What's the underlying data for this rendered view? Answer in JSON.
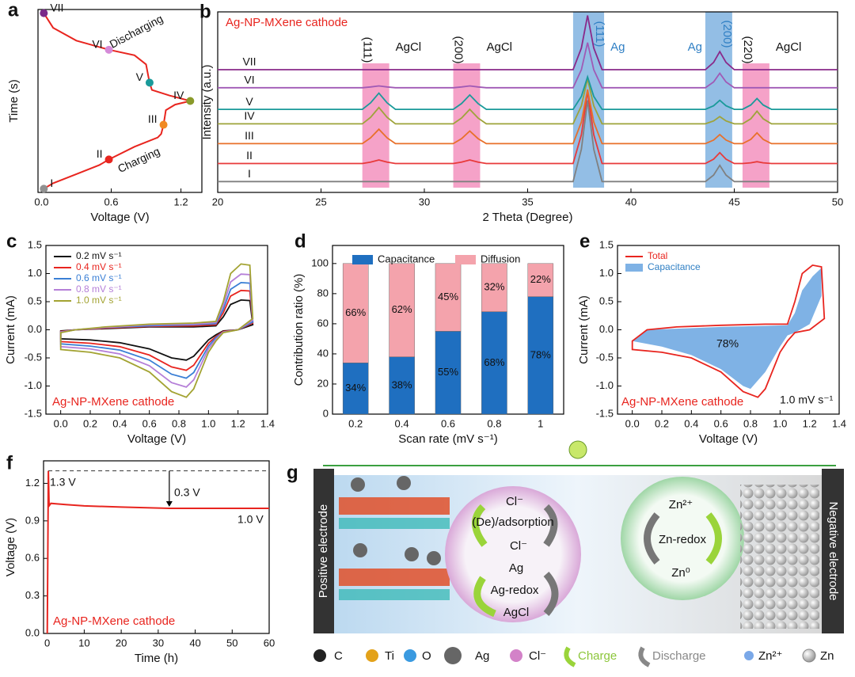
{
  "chart_data": [
    {
      "type": "line",
      "panel": "a",
      "x_label": "Voltage (V)",
      "y_label": "Time (s)",
      "color": "#e8251f",
      "x": [
        0.02,
        0.1,
        0.3,
        0.5,
        0.58,
        0.8,
        1.0,
        1.03,
        1.05,
        1.07,
        1.15,
        1.28,
        1.1,
        0.95,
        0.93,
        0.9,
        0.8,
        0.58,
        0.3,
        0.1,
        0.02
      ],
      "values": [
        0.02,
        0.05,
        0.1,
        0.15,
        0.18,
        0.25,
        0.3,
        0.32,
        0.37,
        0.45,
        0.48,
        0.5,
        0.53,
        0.56,
        0.6,
        0.7,
        0.75,
        0.78,
        0.83,
        0.9,
        0.98
      ],
      "markers": {
        "labels": [
          "I",
          "II",
          "III",
          "IV",
          "V",
          "VI",
          "VII"
        ],
        "x": [
          0.02,
          0.58,
          1.05,
          1.28,
          0.93,
          0.58,
          0.02
        ],
        "y": [
          0.02,
          0.18,
          0.37,
          0.5,
          0.6,
          0.78,
          0.98
        ],
        "colors": [
          "#909090",
          "#e8251f",
          "#f08a24",
          "#8a9a2a",
          "#1a9a9a",
          "#d58ad8",
          "#7a2a8a"
        ]
      },
      "annotations": [
        "Discharging",
        "Charging"
      ],
      "xlim": [
        -0.03,
        1.38
      ],
      "xticks": [
        {
          "value": 0,
          "label": "0.0"
        },
        0.6,
        1.2
      ],
      "ylim": [
        0,
        1
      ]
    },
    {
      "type": "line",
      "panel": "b",
      "title": "Ag-NP-MXene cathode",
      "x_label": "2 Theta (Degree)",
      "y_label": "Intensity (a.u.)",
      "x": [
        20,
        27.0,
        27.4,
        27.8,
        28.2,
        28.6,
        31.4,
        31.8,
        32.2,
        32.6,
        33.0,
        37.2,
        37.6,
        37.9,
        38.2,
        38.6,
        43.6,
        44.0,
        44.3,
        44.6,
        45.0,
        45.4,
        45.8,
        46.1,
        46.4,
        46.8,
        50
      ],
      "series": [
        {
          "name": "I",
          "color": "#808080",
          "values": [
            6,
            6,
            6,
            6,
            6,
            6,
            6,
            6,
            6,
            6,
            6,
            6,
            24,
            51,
            24,
            6,
            6,
            9.6,
            15,
            9.6,
            6,
            6,
            6,
            6,
            6,
            6,
            6
          ]
        },
        {
          "name": "II",
          "color": "#e83a3a",
          "values": [
            16,
            16,
            16.8,
            18,
            16.8,
            16,
            16,
            16.8,
            18,
            16.8,
            16,
            16,
            32,
            56,
            32,
            16,
            16,
            18.4,
            22,
            18.4,
            16,
            16,
            16.4,
            17,
            16.4,
            16,
            16
          ]
        },
        {
          "name": "III",
          "color": "#e8702a",
          "values": [
            27,
            27,
            30.2,
            35,
            30.2,
            27,
            27,
            29.8,
            34,
            29.8,
            27,
            27,
            39,
            57,
            39,
            27,
            27,
            29,
            32,
            29,
            27,
            27,
            29.4,
            33,
            29.4,
            27,
            27
          ]
        },
        {
          "name": "IV",
          "color": "#9ea33a",
          "values": [
            38,
            38,
            41.6,
            47,
            41.6,
            38,
            38,
            41.2,
            46,
            41.2,
            38,
            38,
            48,
            63,
            48,
            38,
            38,
            39.6,
            42,
            39.6,
            38,
            38,
            40.8,
            45,
            40.8,
            38,
            38
          ]
        },
        {
          "name": "V",
          "color": "#1a9a9a",
          "values": [
            46,
            46,
            49.6,
            55,
            49.6,
            46,
            46,
            49.2,
            54,
            49.2,
            46,
            46,
            53.2,
            64,
            53.2,
            46,
            46,
            48,
            51,
            48,
            46,
            46,
            48.4,
            52,
            48.4,
            46,
            46
          ]
        },
        {
          "name": "VI",
          "color": "#a05ab5",
          "values": [
            58,
            58,
            58.4,
            59,
            58.4,
            58,
            58,
            58.4,
            59,
            58.4,
            58,
            58,
            68,
            83,
            68,
            58,
            58,
            61.2,
            66,
            61.2,
            58,
            58,
            58,
            58,
            58,
            58,
            58
          ]
        },
        {
          "name": "VII",
          "color": "#8a2a8a",
          "values": [
            68,
            68,
            68,
            68,
            68,
            68,
            68,
            68,
            68,
            68,
            68,
            68,
            80,
            98,
            80,
            68,
            68,
            72,
            78,
            72,
            68,
            68,
            68,
            68,
            68,
            68,
            68
          ]
        }
      ],
      "bands": [
        {
          "x": [
            27.0,
            28.3
          ],
          "hkl": "(111)",
          "phase": "AgCl",
          "color": "#f283b6",
          "label_color": "#111"
        },
        {
          "x": [
            31.4,
            32.7
          ],
          "hkl": "(200)",
          "phase": "AgCl",
          "color": "#f283b6",
          "label_color": "#111"
        },
        {
          "x": [
            37.2,
            38.7
          ],
          "hkl": "(111)",
          "phase": "Ag",
          "color": "#6fa8dc",
          "label_color": "#2f7fc4"
        },
        {
          "x": [
            43.6,
            44.9
          ],
          "hkl": "(200)",
          "phase": "Ag",
          "color": "#6fa8dc",
          "label_color": "#2f7fc4"
        },
        {
          "x": [
            45.4,
            46.7
          ],
          "hkl": "(220)",
          "phase": "AgCl",
          "color": "#f283b6",
          "label_color": "#111"
        }
      ],
      "xlim": [
        20,
        50
      ],
      "xticks": [
        20,
        25,
        30,
        35,
        40,
        45,
        50
      ],
      "ylim": [
        0,
        100
      ]
    },
    {
      "type": "line",
      "panel": "c",
      "x_label": "Voltage (V)",
      "y_label": "Current (mA)",
      "legend": "upper left",
      "annotations": [
        "Ag-NP-MXene cathode"
      ],
      "series": [
        {
          "name": "0.2 mV s⁻¹",
          "color": "#111111",
          "x": [
            0.0,
            0.1,
            0.3,
            0.6,
            0.9,
            1.05,
            1.1,
            1.15,
            1.22,
            1.28,
            1.3,
            1.2,
            1.1,
            1.05,
            1.0,
            0.9,
            0.85,
            0.75,
            0.6,
            0.4,
            0.2,
            0.0
          ],
          "values": [
            -0.02,
            0,
            0.02,
            0.05,
            0.05,
            0.07,
            0.23,
            0.45,
            0.53,
            0.52,
            0.09,
            0,
            -0.02,
            -0.09,
            -0.18,
            -0.47,
            -0.54,
            -0.5,
            -0.34,
            -0.23,
            -0.18,
            -0.16
          ]
        },
        {
          "name": "0.4 mV s⁻¹",
          "color": "#e8251f",
          "x": [
            0.0,
            0.1,
            0.3,
            0.6,
            0.9,
            1.05,
            1.1,
            1.15,
            1.22,
            1.28,
            1.3,
            1.2,
            1.1,
            1.05,
            1.0,
            0.9,
            0.85,
            0.75,
            0.6,
            0.4,
            0.2,
            0.0
          ],
          "values": [
            -0.03,
            0,
            0.03,
            0.06,
            0.07,
            0.09,
            0.3,
            0.6,
            0.7,
            0.69,
            0.12,
            0,
            -0.03,
            -0.12,
            -0.24,
            -0.63,
            -0.72,
            -0.66,
            -0.45,
            -0.3,
            -0.24,
            -0.21
          ]
        },
        {
          "name": "0.6 mV s⁻¹",
          "color": "#3a7fd5",
          "x": [
            0.0,
            0.1,
            0.3,
            0.6,
            0.9,
            1.05,
            1.1,
            1.15,
            1.22,
            1.28,
            1.3,
            1.2,
            1.1,
            1.05,
            1.0,
            0.9,
            0.85,
            0.75,
            0.6,
            0.4,
            0.2,
            0.0
          ],
          "values": [
            -0.04,
            0,
            0.04,
            0.07,
            0.09,
            0.11,
            0.36,
            0.72,
            0.84,
            0.83,
            0.14,
            0,
            -0.04,
            -0.14,
            -0.29,
            -0.76,
            -0.86,
            -0.79,
            -0.54,
            -0.36,
            -0.29,
            -0.25
          ]
        },
        {
          "name": "0.8 mV s⁻¹",
          "color": "#b57fd8",
          "x": [
            0.0,
            0.1,
            0.3,
            0.6,
            0.9,
            1.05,
            1.1,
            1.15,
            1.22,
            1.28,
            1.3,
            1.2,
            1.1,
            1.05,
            1.0,
            0.9,
            0.85,
            0.75,
            0.6,
            0.4,
            0.2,
            0.0
          ],
          "values": [
            -0.04,
            0,
            0.04,
            0.09,
            0.1,
            0.13,
            0.43,
            0.85,
            0.99,
            0.98,
            0.17,
            0,
            -0.04,
            -0.17,
            -0.34,
            -0.89,
            -1.02,
            -0.94,
            -0.64,
            -0.43,
            -0.34,
            -0.3
          ]
        },
        {
          "name": "1.0 mV s⁻¹",
          "color": "#a3a332",
          "x": [
            0.0,
            0.1,
            0.3,
            0.6,
            0.9,
            1.05,
            1.1,
            1.15,
            1.22,
            1.28,
            1.3,
            1.2,
            1.1,
            1.05,
            1.0,
            0.9,
            0.85,
            0.75,
            0.6,
            0.4,
            0.2,
            0.0
          ],
          "values": [
            -0.05,
            0,
            0.05,
            0.1,
            0.12,
            0.15,
            0.5,
            1.0,
            1.17,
            1.15,
            0.2,
            0,
            -0.05,
            -0.2,
            -0.4,
            -1.05,
            -1.2,
            -1.1,
            -0.75,
            -0.5,
            -0.4,
            -0.35
          ]
        }
      ],
      "xlim": [
        -0.1,
        1.4
      ],
      "xticks": [
        {
          "value": 0,
          "label": "0.0"
        },
        0.2,
        0.4,
        0.6,
        0.8,
        {
          "value": 1,
          "label": "1.0"
        },
        1.2,
        1.4
      ],
      "ylim": [
        -1.5,
        1.5
      ],
      "yticks": [
        -1.5,
        {
          "value": -1,
          "label": "-1.0"
        },
        -0.5,
        {
          "value": 0,
          "label": "0.0"
        },
        0.5,
        {
          "value": 1,
          "label": "1.0"
        },
        1.5
      ]
    },
    {
      "type": "bar",
      "panel": "d",
      "x_label": "Scan rate (mV s⁻¹)",
      "y_label": "Contribution ratio (%)",
      "stacked": true,
      "legend": "upper center",
      "categories": [
        "0.2",
        "0.4",
        "0.6",
        "0.8",
        "1"
      ],
      "series": [
        {
          "name": "Capacitance",
          "color": "#1f6fc0",
          "values": [
            34,
            38,
            55,
            68,
            78
          ],
          "value_labels": [
            "34%",
            "38%",
            "55%",
            "68%",
            "78%"
          ]
        },
        {
          "name": "Diffusion",
          "color": "#f4a3ac",
          "values": [
            66,
            62,
            45,
            32,
            22
          ],
          "value_labels": [
            "66%",
            "62%",
            "45%",
            "32%",
            "22%"
          ]
        }
      ],
      "ylim": [
        0,
        112
      ],
      "yticks": [
        0,
        20,
        40,
        60,
        80,
        100
      ]
    },
    {
      "type": "line",
      "panel": "e",
      "x_label": "Voltage (V)",
      "y_label": "Current (mA)",
      "legend": "upper left",
      "annotations": [
        "78%",
        "Ag-NP-MXene cathode",
        "1.0 mV s⁻¹"
      ],
      "series": [
        {
          "name": "Total",
          "color": "#e8251f",
          "x": [
            0.0,
            0.1,
            0.3,
            0.6,
            0.9,
            1.05,
            1.1,
            1.15,
            1.22,
            1.28,
            1.3,
            1.2,
            1.1,
            1.05,
            1.0,
            0.9,
            0.85,
            0.75,
            0.6,
            0.4,
            0.2,
            0.0
          ],
          "values": [
            -0.2,
            0,
            0.05,
            0.08,
            0.1,
            0.1,
            0.5,
            1.0,
            1.15,
            1.12,
            0.2,
            0,
            -0.05,
            -0.2,
            -0.4,
            -1.05,
            -1.2,
            -1.1,
            -0.75,
            -0.5,
            -0.4,
            -0.35
          ]
        },
        {
          "name": "Capacitance",
          "fill": "#7fb2e5",
          "x": [
            0.0,
            0.1,
            0.3,
            0.6,
            0.9,
            1.05,
            1.1,
            1.15,
            1.22,
            1.28,
            1.28,
            1.2,
            1.1,
            1.05,
            1.0,
            0.9,
            0.8,
            0.75,
            0.6,
            0.4,
            0.2,
            0.0
          ],
          "values": [
            -0.2,
            0,
            0.02,
            0.05,
            0.07,
            0.08,
            0.3,
            0.7,
            0.95,
            1.1,
            0.6,
            0.1,
            -0.05,
            -0.1,
            -0.3,
            -0.75,
            -1.05,
            -1.0,
            -0.7,
            -0.45,
            -0.3,
            -0.2
          ]
        }
      ],
      "xlim": [
        -0.1,
        1.4
      ],
      "xticks": [
        {
          "value": 0,
          "label": "0.0"
        },
        0.2,
        0.4,
        0.6,
        0.8,
        {
          "value": 1,
          "label": "1.0"
        },
        1.2,
        1.4
      ],
      "ylim": [
        -1.5,
        1.5
      ],
      "yticks": [
        -1.5,
        {
          "value": -1,
          "label": "-1.0"
        },
        -0.5,
        {
          "value": 0,
          "label": "0.0"
        },
        0.5,
        {
          "value": 1,
          "label": "1.0"
        },
        1.5
      ]
    },
    {
      "type": "line",
      "panel": "f",
      "x_label": "Time (h)",
      "y_label": "Voltage (V)",
      "color": "#e8251f",
      "annotations": [
        "1.3 V",
        "0.3 V",
        "1.0 V",
        "Ag-NP-MXene cathode"
      ],
      "x": [
        0,
        0.3,
        0.5,
        1,
        5,
        10,
        20,
        33,
        40,
        50,
        60
      ],
      "values": [
        0,
        1.3,
        1.02,
        1.04,
        1.03,
        1.02,
        1.01,
        1.0,
        1.0,
        1.0,
        1.0
      ],
      "xlim": [
        -1,
        60
      ],
      "xticks": [
        0,
        10,
        20,
        30,
        40,
        50,
        60
      ],
      "ylim": [
        0,
        1.38
      ],
      "yticks": [
        {
          "value": 0,
          "label": "0.0"
        },
        0.3,
        0.6,
        0.9,
        1.2
      ]
    }
  ],
  "diagram": {
    "panel": "g",
    "electrodes": [
      "Positive electrode",
      "Negative electrode"
    ],
    "ag_bubble": [
      "Cl⁻",
      "(De)/adsorption",
      "Cl⁻",
      "Ag",
      "Ag-redox",
      "AgCl"
    ],
    "zn_bubble": [
      "Zn²⁺",
      "Zn-redox",
      "Zn⁰"
    ],
    "legend": [
      "C",
      "Ti",
      "O",
      "Ag",
      "Cl⁻",
      "Charge",
      "Discharge",
      "Zn²⁺",
      "Zn"
    ]
  }
}
